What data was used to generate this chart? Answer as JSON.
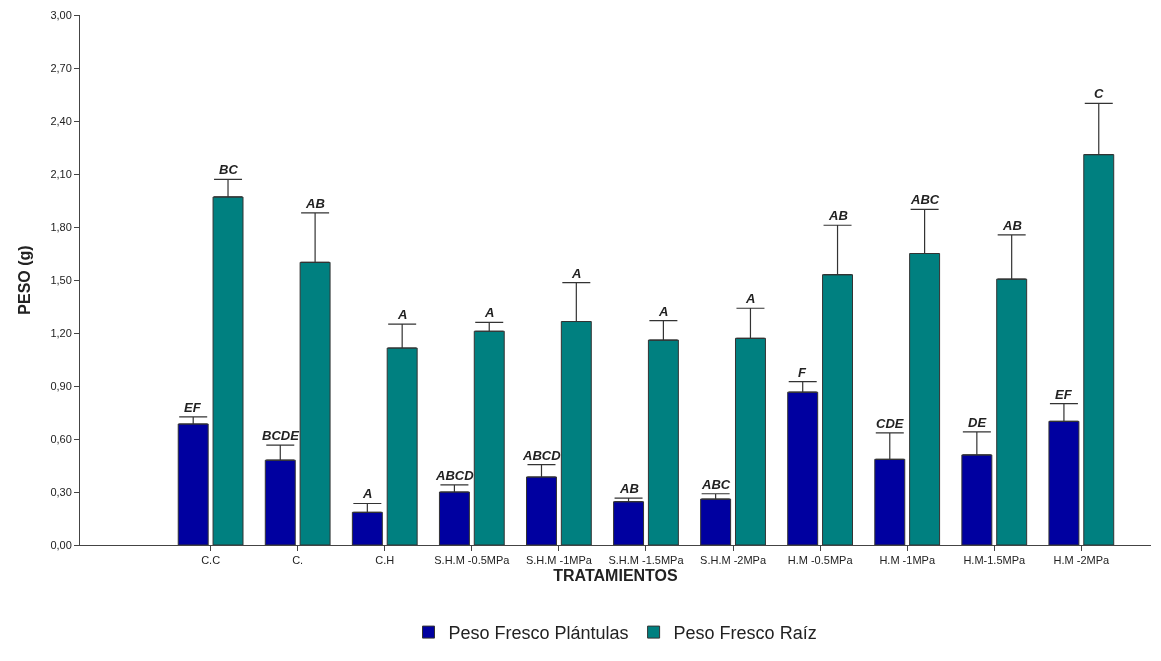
{
  "chart_data": {
    "type": "bar",
    "xlabel": "TRATAMIENTOS",
    "ylabel": "PESO (g)",
    "categories": [
      "C.C",
      "C.",
      "C.H",
      "S.H.M -0.5MPa",
      "S.H.M -1MPa",
      "S.H.M -1.5MPa",
      "S.H.M -2MPa",
      "H.M -0.5MPa",
      "H.M -1MPa",
      "H.M-1.5MPa",
      "H.M -2MPa"
    ],
    "series": [
      {
        "name": "Peso Fresco Plántulas",
        "color": "#0000a0",
        "values": [
          0.685,
          0.48,
          0.185,
          0.3,
          0.385,
          0.245,
          0.26,
          0.865,
          0.485,
          0.51,
          0.7
        ],
        "errors": [
          0.04,
          0.085,
          0.05,
          0.04,
          0.07,
          0.02,
          0.03,
          0.06,
          0.15,
          0.13,
          0.1
        ]
      },
      {
        "name": "Peso Fresco Raíz",
        "color": "#008080",
        "values": [
          1.97,
          1.6,
          1.115,
          1.21,
          1.265,
          1.16,
          1.17,
          1.53,
          1.65,
          1.505,
          2.21
        ],
        "errors": [
          0.1,
          0.28,
          0.135,
          0.05,
          0.22,
          0.11,
          0.17,
          0.28,
          0.25,
          0.25,
          0.29
        ]
      }
    ],
    "annotations": [
      {
        "text": "EF",
        "x": "C.C",
        "y": 0.725
      },
      {
        "text": "BCDE",
        "x": "C.",
        "y": 0.565
      },
      {
        "text": "A",
        "x": "C.H",
        "y": 0.235
      },
      {
        "text": "ABCD",
        "x": "S.H.M -0.5MPa",
        "y": 0.34
      },
      {
        "text": "ABCD",
        "x": "S.H.M -1MPa",
        "y": 0.455
      },
      {
        "text": "AB",
        "x": "S.H.M -1.5MPa",
        "y": 0.265
      },
      {
        "text": "ABC",
        "x": "S.H.M -2MPa",
        "y": 0.29
      },
      {
        "text": "F",
        "x": "H.M -0.5MPa",
        "y": 0.925
      },
      {
        "text": "CDE",
        "x": "H.M -1MPa",
        "y": 0.635
      },
      {
        "text": "DE",
        "x": "H.M-1.5MPa",
        "y": 0.64
      },
      {
        "text": "EF",
        "x": "H.M -2MPa",
        "y": 0.8
      },
      {
        "text": "BC",
        "x": "C.C",
        "y": 2.07
      },
      {
        "text": "AB",
        "x": "C.",
        "y": 1.88
      },
      {
        "text": "A",
        "x": "C.H",
        "y": 1.25
      },
      {
        "text": "A",
        "x": "S.H.M -0.5MPa",
        "y": 1.26
      },
      {
        "text": "A",
        "x": "S.H.M -1MPa",
        "y": 1.485
      },
      {
        "text": "A",
        "x": "S.H.M -1.5MPa",
        "y": 1.27
      },
      {
        "text": "A",
        "x": "S.H.M -2MPa",
        "y": 1.34
      },
      {
        "text": "AB",
        "x": "H.M -0.5MPa",
        "y": 1.81
      },
      {
        "text": "ABC",
        "x": "H.M -1MPa",
        "y": 1.9
      },
      {
        "text": "AB",
        "x": "H.M-1.5MPa",
        "y": 1.755
      },
      {
        "text": "C",
        "x": "H.M -2MPa",
        "y": 2.5
      }
    ],
    "ylim": [
      0,
      3
    ],
    "yticks": [
      {
        "value": 0,
        "label": "0,00"
      },
      {
        "value": 0.3,
        "label": "0,30"
      },
      {
        "value": 0.6,
        "label": "0,60"
      },
      {
        "value": 0.9,
        "label": "0,90"
      },
      {
        "value": 1.2,
        "label": "1,20"
      },
      {
        "value": 1.5,
        "label": "1,50"
      },
      {
        "value": 1.8,
        "label": "1,80"
      },
      {
        "value": 2.1,
        "label": "2,10"
      },
      {
        "value": 2.4,
        "label": "2,40"
      },
      {
        "value": 2.7,
        "label": "2,70"
      },
      {
        "value": 3.0,
        "label": "3,00"
      }
    ],
    "grid": false,
    "legend": "bottom"
  }
}
